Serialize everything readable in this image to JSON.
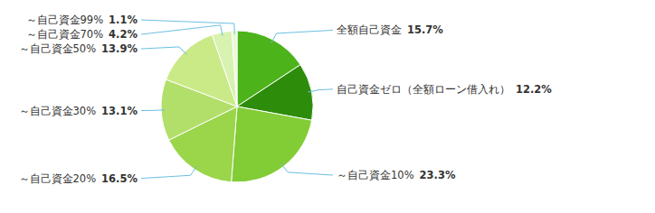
{
  "chart_data": {
    "type": "pie",
    "categories": [
      "全額自己資金",
      "自己資金ゼロ（全額ローン借入れ）",
      "～自己資金10%",
      "～自己資金20%",
      "～自己資金30%",
      "～自己資金50%",
      "～自己資金70%",
      "～自己資金99%"
    ],
    "values": [
      15.7,
      12.2,
      23.3,
      16.5,
      13.1,
      13.9,
      4.2,
      1.1
    ],
    "value_labels": [
      "15.7%",
      "12.2%",
      "23.3%",
      "16.5%",
      "13.1%",
      "13.9%",
      "4.2%",
      "1.1%"
    ],
    "colors": [
      "#4db31a",
      "#2d8c0a",
      "#82cc35",
      "#9ad54a",
      "#b2df6a",
      "#caea88",
      "#d8f2b0",
      "#e8fad5"
    ],
    "data_labels": true
  }
}
